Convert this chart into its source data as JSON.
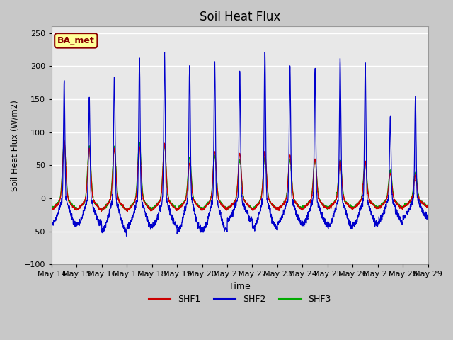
{
  "title": "Soil Heat Flux",
  "ylabel": "Soil Heat Flux (W/m2)",
  "xlabel": "Time",
  "ylim": [
    -100,
    260
  ],
  "yticks": [
    -100,
    -50,
    0,
    50,
    100,
    150,
    200,
    250
  ],
  "xtick_labels": [
    "May 14",
    "May 15",
    "May 16",
    "May 17",
    "May 18",
    "May 19",
    "May 20",
    "May 21",
    "May 22",
    "May 23",
    "May 24",
    "May 25",
    "May 26",
    "May 27",
    "May 28",
    "May 29"
  ],
  "legend_labels": [
    "SHF1",
    "SHF2",
    "SHF3"
  ],
  "legend_colors": [
    "#cc0000",
    "#0000cc",
    "#00aa00"
  ],
  "annotation_text": "BA_met",
  "annotation_bg": "#ffff99",
  "annotation_border": "#8b0000",
  "fig_bg": "#c8c8c8",
  "axes_bg": "#e8e8e8",
  "grid_color": "#ffffff",
  "n_days": 15,
  "pts_per_day": 144,
  "peak_shf2": [
    178,
    152,
    185,
    210,
    220,
    200,
    205,
    193,
    225,
    200,
    197,
    210,
    203,
    125,
    152
  ],
  "trough_shf2": [
    -42,
    -42,
    -53,
    -45,
    -45,
    -52,
    -52,
    -35,
    -48,
    -40,
    -42,
    -45,
    -42,
    -38,
    -30
  ],
  "peak_shf1": [
    88,
    75,
    75,
    78,
    83,
    53,
    72,
    68,
    72,
    65,
    60,
    57,
    55,
    38,
    35
  ],
  "trough_shf1": [
    -20,
    -20,
    -20,
    -22,
    -20,
    -20,
    -20,
    -18,
    -20,
    -20,
    -18,
    -18,
    -18,
    -18,
    -15
  ],
  "peak_shf3": [
    85,
    78,
    78,
    85,
    80,
    62,
    65,
    58,
    62,
    58,
    58,
    58,
    55,
    42,
    40
  ],
  "trough_shf3": [
    -17,
    -20,
    -20,
    -20,
    -18,
    -18,
    -18,
    -18,
    -18,
    -18,
    -16,
    -16,
    -16,
    -16,
    -14
  ]
}
